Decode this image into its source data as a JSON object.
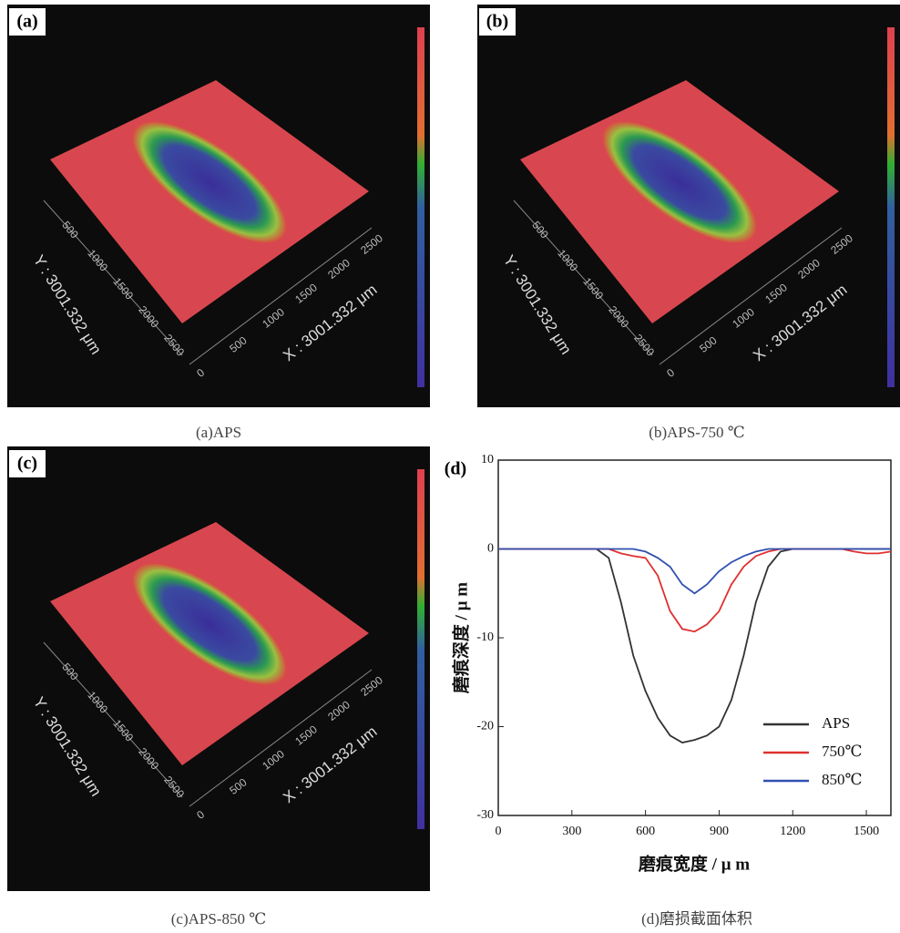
{
  "panels": [
    {
      "label": "(a)",
      "caption": "(a)APS",
      "x_axis_label": "X : 3001.332 μm",
      "y_axis_label": "Y : 3001.332 μm",
      "x_ticks": [
        "0",
        "500",
        "1000",
        "1500",
        "2000",
        "2500"
      ],
      "y_ticks": [
        "500",
        "1000",
        "1500",
        "2000",
        "2500"
      ]
    },
    {
      "label": "(b)",
      "caption": "(b)APS-750 ℃",
      "x_axis_label": "X : 3001.332 μm",
      "y_axis_label": "Y : 3001.332 μm",
      "x_ticks": [
        "0",
        "500",
        "1000",
        "1500",
        "2000",
        "2500"
      ],
      "y_ticks": [
        "500",
        "1000",
        "1500",
        "2000",
        "2500"
      ]
    },
    {
      "label": "(c)",
      "caption": "(c)APS-850 ℃",
      "x_axis_label": "X : 3001.332 μm",
      "y_axis_label": "Y : 3001.332 μm",
      "x_ticks": [
        "0",
        "500",
        "1000",
        "1500",
        "2000",
        "2500"
      ],
      "y_ticks": [
        "500",
        "1000",
        "1500",
        "2000",
        "2500"
      ]
    }
  ],
  "chart_data": {
    "type": "line",
    "label": "(d)",
    "caption": "(d)磨损截面体积",
    "x_label": "磨痕宽度 / μ m",
    "y_label": "磨痕深度 / μ m",
    "xlim": [
      0,
      1600
    ],
    "xticks": [
      0,
      300,
      600,
      900,
      1200,
      1500
    ],
    "ylim": [
      -30,
      10
    ],
    "yticks": [
      -30,
      -20,
      -10,
      0,
      10
    ],
    "x": [
      0,
      50,
      100,
      150,
      200,
      250,
      300,
      350,
      400,
      450,
      500,
      550,
      600,
      650,
      700,
      750,
      800,
      850,
      900,
      950,
      1000,
      1050,
      1100,
      1150,
      1200,
      1250,
      1300,
      1350,
      1400,
      1450,
      1500,
      1550,
      1600
    ],
    "series": [
      {
        "name": "APS",
        "color": "#333333",
        "values": [
          0,
          0,
          0,
          0,
          0,
          0,
          0,
          0,
          0,
          -1,
          -6,
          -12,
          -16,
          -19,
          -21,
          -21.8,
          -21.5,
          -21,
          -20,
          -17,
          -12,
          -6,
          -2,
          -0.3,
          0,
          0,
          0,
          0,
          0,
          0,
          0,
          0,
          0
        ]
      },
      {
        "name": "750℃",
        "color": "#e03030",
        "values": [
          0,
          0,
          0,
          0,
          0,
          0,
          0,
          0,
          0,
          0,
          -0.5,
          -0.8,
          -1,
          -3,
          -7,
          -9,
          -9.3,
          -8.5,
          -7,
          -4,
          -2,
          -0.8,
          -0.3,
          0,
          0,
          0,
          0,
          0,
          0,
          -0.3,
          -0.5,
          -0.5,
          -0.3
        ]
      },
      {
        "name": "850℃",
        "color": "#3050b0",
        "values": [
          0,
          0,
          0,
          0,
          0,
          0,
          0,
          0,
          0,
          0,
          0,
          0,
          -0.3,
          -1,
          -2,
          -4,
          -5,
          -4,
          -2.5,
          -1.5,
          -0.8,
          -0.3,
          0,
          0,
          0,
          0,
          0,
          0,
          0,
          0,
          0,
          0,
          0
        ]
      }
    ],
    "legend": "lower right"
  }
}
